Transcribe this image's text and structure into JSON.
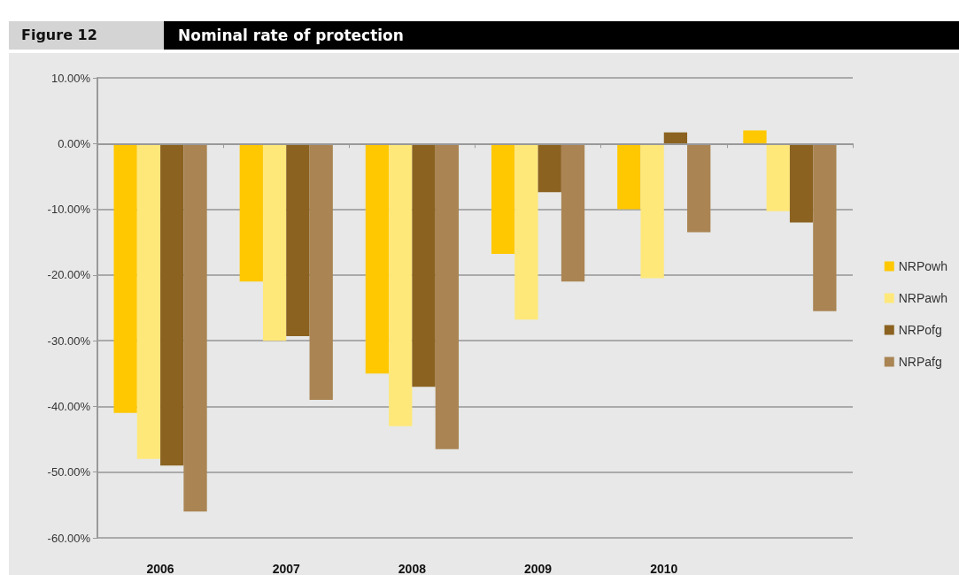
{
  "chart_data": {
    "type": "bar",
    "title": "Nominal rate of protection",
    "annotations": [
      "Figure 12"
    ],
    "categories": [
      "2006",
      "2007",
      "2008",
      "2009",
      "2010",
      null
    ],
    "series": [
      {
        "name": "NRPowh",
        "color": "#ffc800",
        "values": [
          -41,
          -21,
          -35,
          -16.8,
          -10,
          2
        ]
      },
      {
        "name": "NRPawh",
        "color": "#ffe87a",
        "values": [
          -48,
          -30,
          -43,
          -26.8,
          -20.5,
          -10.3
        ]
      },
      {
        "name": "NRPofg",
        "color": "#8b6220",
        "values": [
          -49,
          -29.3,
          -37,
          -7.4,
          1.7,
          -12
        ]
      },
      {
        "name": "NRPafg",
        "color": "#aa8453",
        "values": [
          -56,
          -39,
          -46.5,
          -21,
          -13.5,
          -25.5
        ]
      }
    ],
    "ylim": [
      -60,
      10
    ],
    "yticks": [
      {
        "value": 10,
        "label": "10.00%"
      },
      {
        "value": 0,
        "label": "0.00%"
      },
      {
        "value": -10,
        "label": "-10.00%"
      },
      {
        "value": -20,
        "label": "-20.00%"
      },
      {
        "value": -30,
        "label": "-30.00%"
      },
      {
        "value": -40,
        "label": "-40.00%"
      },
      {
        "value": -50,
        "label": "-50.00%"
      },
      {
        "value": -60,
        "label": "-60.00%"
      }
    ],
    "grid": "y",
    "legend": "right"
  }
}
